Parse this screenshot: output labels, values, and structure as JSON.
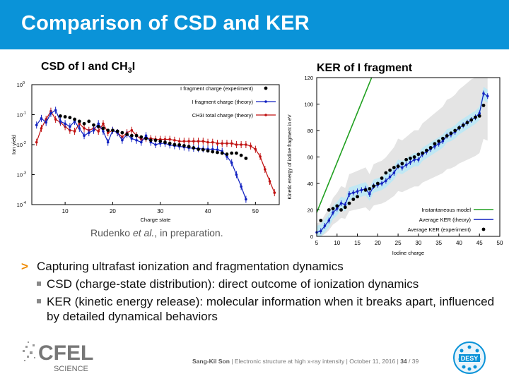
{
  "slide": {
    "title": "Comparison of CSD and KER",
    "citation_author": "Rudenko",
    "citation_etal": "et al.",
    "citation_rest": ", in preparation.",
    "bullets": {
      "main": "Capturing ultrafast ionization and fragmentation dynamics",
      "subs": [
        "CSD (charge-state distribution): direct outcome of ionization dynamics",
        "KER (kinetic energy release): molecular information when it breaks apart, influenced by detailed dynamical behaviors"
      ]
    },
    "footer": {
      "author": "Sang-Kil Son",
      "talk": "Electronic structure at high x-ray intensity",
      "date": "October 11, 2016",
      "page": "34",
      "total": "/ 39"
    },
    "logos": {
      "left_top": "CFEL",
      "left_bottom": "SCIENCE",
      "right": "DESY"
    }
  },
  "chart_data": [
    {
      "type": "line",
      "title_main": "CSD of I and CH",
      "title_sub": "3",
      "title_end": "I",
      "xlabel": "Charge state",
      "ylabel": "Ion yield",
      "xlim": [
        3,
        55
      ],
      "ylim": [
        0.0001,
        1
      ],
      "yscale": "log",
      "xticks": [
        10,
        20,
        30,
        40,
        50
      ],
      "ytick_labels": [
        "10",
        "10",
        "10",
        "10",
        "10"
      ],
      "ytick_exps": [
        "0",
        "-1",
        "-2",
        "-3",
        "-4"
      ],
      "ytick_values": [
        1,
        0.1,
        0.01,
        0.001,
        0.0001
      ],
      "legend_position": "top-right",
      "series": [
        {
          "name": "I fragment charge (experiment)",
          "style": "points",
          "color": "#000000",
          "x": [
            9,
            10,
            11,
            12,
            13,
            14,
            15,
            16,
            17,
            18,
            19,
            20,
            21,
            22,
            23,
            24,
            25,
            26,
            27,
            28,
            29,
            30,
            31,
            32,
            33,
            34,
            35,
            36,
            37,
            38,
            39,
            40,
            41,
            42,
            43,
            44,
            45,
            46,
            47,
            48
          ],
          "y": [
            0.09,
            0.085,
            0.08,
            0.07,
            0.06,
            0.05,
            0.06,
            0.045,
            0.04,
            0.035,
            0.03,
            0.03,
            0.028,
            0.025,
            0.022,
            0.02,
            0.02,
            0.018,
            0.016,
            0.014,
            0.014,
            0.013,
            0.012,
            0.011,
            0.01,
            0.0098,
            0.0092,
            0.0086,
            0.0078,
            0.007,
            0.0068,
            0.0062,
            0.0058,
            0.0055,
            0.0052,
            0.0048,
            0.0052,
            0.0052,
            0.0044,
            0.0035
          ]
        },
        {
          "name": "I fragment charge (theory)",
          "style": "line-errorbars",
          "color": "#1020c0",
          "x": [
            4,
            5,
            6,
            7,
            8,
            9,
            10,
            11,
            12,
            13,
            14,
            15,
            16,
            17,
            18,
            19,
            20,
            21,
            22,
            23,
            24,
            25,
            26,
            27,
            28,
            29,
            30,
            31,
            32,
            33,
            34,
            35,
            36,
            37,
            38,
            39,
            40,
            41,
            42,
            43,
            44,
            45,
            46,
            47,
            48
          ],
          "y": [
            0.045,
            0.075,
            0.055,
            0.11,
            0.14,
            0.06,
            0.05,
            0.04,
            0.06,
            0.035,
            0.02,
            0.025,
            0.03,
            0.05,
            0.028,
            0.012,
            0.03,
            0.025,
            0.014,
            0.022,
            0.016,
            0.014,
            0.012,
            0.02,
            0.012,
            0.01,
            0.011,
            0.011,
            0.0098,
            0.0092,
            0.0088,
            0.0083,
            0.0078,
            0.0076,
            0.0074,
            0.0072,
            0.0071,
            0.007,
            0.0068,
            0.006,
            0.004,
            0.0025,
            0.001,
            0.0004,
            0.00015
          ]
        },
        {
          "name": "CH3I total charge (theory)",
          "style": "line-errorbars",
          "color": "#c01010",
          "x": [
            4,
            5,
            6,
            7,
            8,
            9,
            10,
            11,
            12,
            13,
            14,
            15,
            16,
            17,
            18,
            19,
            20,
            21,
            22,
            23,
            24,
            25,
            26,
            27,
            28,
            29,
            30,
            31,
            32,
            33,
            34,
            35,
            36,
            37,
            38,
            39,
            40,
            41,
            42,
            43,
            44,
            45,
            46,
            47,
            48,
            49,
            50,
            51,
            52,
            53,
            54
          ],
          "y": [
            0.012,
            0.035,
            0.07,
            0.13,
            0.07,
            0.055,
            0.04,
            0.03,
            0.028,
            0.05,
            0.035,
            0.03,
            0.035,
            0.028,
            0.05,
            0.025,
            0.03,
            0.025,
            0.018,
            0.025,
            0.03,
            0.02,
            0.015,
            0.016,
            0.016,
            0.015,
            0.015,
            0.015,
            0.015,
            0.014,
            0.013,
            0.013,
            0.013,
            0.013,
            0.013,
            0.013,
            0.012,
            0.012,
            0.011,
            0.011,
            0.011,
            0.011,
            0.01,
            0.01,
            0.01,
            0.009,
            0.007,
            0.004,
            0.0015,
            0.0006,
            0.00025
          ]
        }
      ]
    },
    {
      "type": "line",
      "title": "KER of I fragment",
      "xlabel": "Iodine charge",
      "ylabel": "Kinetic energy of iodine fragment in eV",
      "xlim": [
        5,
        50
      ],
      "ylim": [
        0,
        120
      ],
      "xticks": [
        5,
        10,
        15,
        20,
        25,
        30,
        35,
        40,
        45,
        50
      ],
      "yticks": [
        0,
        20,
        40,
        60,
        80,
        100,
        120
      ],
      "legend_position": "bottom-right",
      "series": [
        {
          "name": "Instantaneous model",
          "style": "line",
          "color": "#20a020",
          "x": [
            5,
            18.5
          ],
          "y": [
            18,
            120
          ]
        },
        {
          "name": "Average KER (theory)",
          "style": "line-errorbars",
          "color": "#1020c0",
          "x": [
            5,
            6,
            7,
            8,
            9,
            10,
            11,
            12,
            13,
            14,
            15,
            16,
            17,
            18,
            19,
            20,
            21,
            22,
            23,
            24,
            25,
            26,
            27,
            28,
            29,
            30,
            31,
            32,
            33,
            34,
            35,
            36,
            37,
            38,
            39,
            40,
            41,
            42,
            43,
            44,
            45,
            46,
            47
          ],
          "y": [
            3,
            4,
            8,
            12,
            18,
            21,
            25,
            24,
            32,
            33,
            34,
            35,
            36,
            32,
            38,
            39,
            40,
            42,
            45,
            48,
            53,
            52,
            54,
            56,
            58,
            58,
            62,
            64,
            66,
            68,
            70,
            72,
            76,
            77,
            79,
            82,
            84,
            86,
            88,
            90,
            93,
            108,
            106
          ]
        },
        {
          "name": "Average KER (experiment)",
          "style": "points",
          "color": "#000000",
          "x": [
            6,
            8,
            9,
            10,
            11,
            12,
            13,
            14,
            15,
            17,
            18,
            19,
            20,
            21,
            22,
            23,
            24,
            25,
            26,
            27,
            28,
            29,
            30,
            31,
            32,
            33,
            34,
            35,
            36,
            37,
            38,
            39,
            40,
            41,
            42,
            43,
            44,
            45,
            46
          ],
          "y": [
            12,
            20,
            21,
            23,
            20,
            22,
            25,
            28,
            30,
            35,
            36,
            38,
            40,
            44,
            48,
            50,
            52,
            53,
            55,
            58,
            59,
            60,
            62,
            63,
            65,
            67,
            70,
            72,
            74,
            76,
            78,
            80,
            82,
            84,
            86,
            88,
            90,
            91,
            99
          ]
        }
      ]
    }
  ]
}
